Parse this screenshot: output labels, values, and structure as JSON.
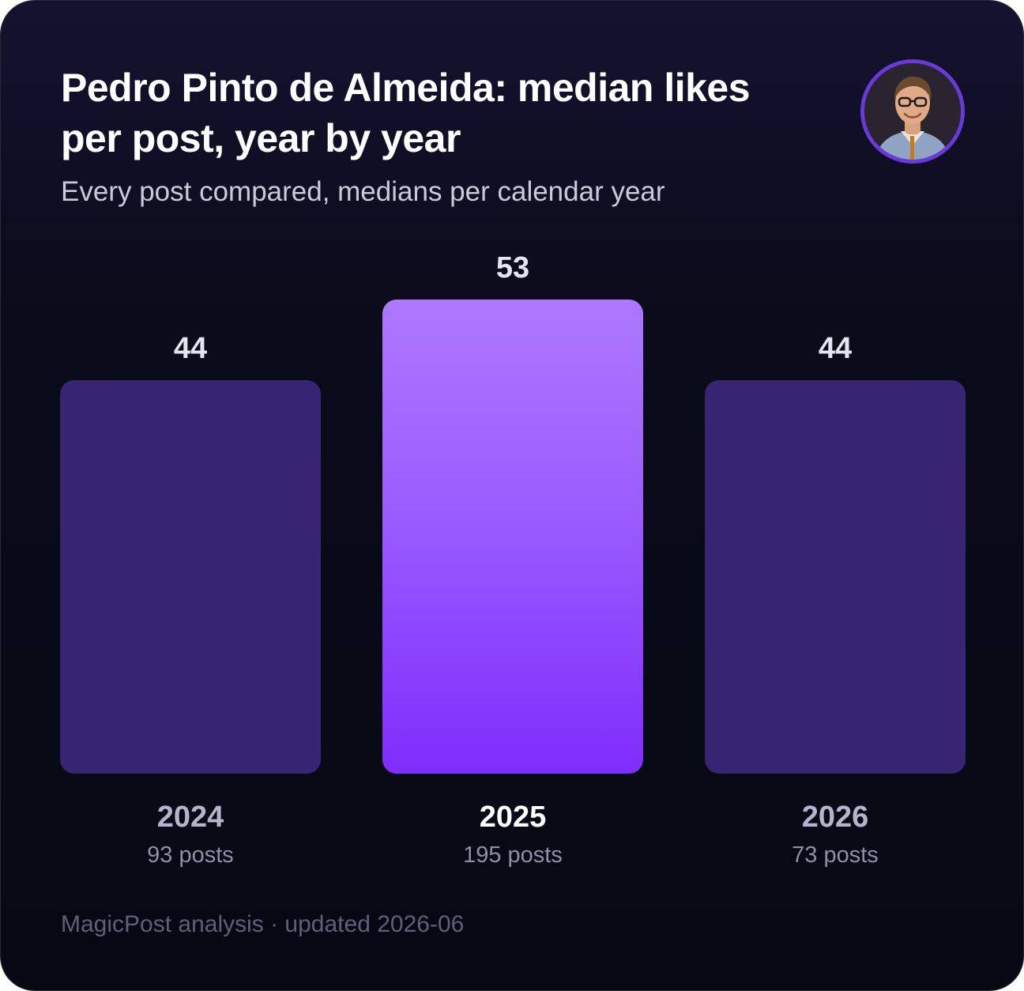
{
  "title": "Pedro Pinto de Almeida: median likes per post, year by year",
  "subtitle": "Every post compared, medians per calendar year",
  "footer": "MagicPost analysis · updated 2026-06",
  "colors": {
    "background_top": "#15122f",
    "background_bottom": "#060913",
    "bar_muted": "#372574",
    "bar_highlight_top": "#ae78ff",
    "bar_highlight_bottom": "#7f2dfc",
    "avatar_ring": "#6a3ad8"
  },
  "avatar": {
    "icon": "profile-photo-icon"
  },
  "chart_data": {
    "type": "bar",
    "categories": [
      "2024",
      "2025",
      "2026"
    ],
    "values": [
      44,
      53,
      44
    ],
    "value_labels": [
      "44",
      "53",
      "44"
    ],
    "post_counts": [
      "93 posts",
      "195 posts",
      "73 posts"
    ],
    "highlighted_category": "2025",
    "ylim": [
      0,
      53
    ],
    "grid": false,
    "legend": "none",
    "xlabel": "",
    "ylabel": ""
  }
}
